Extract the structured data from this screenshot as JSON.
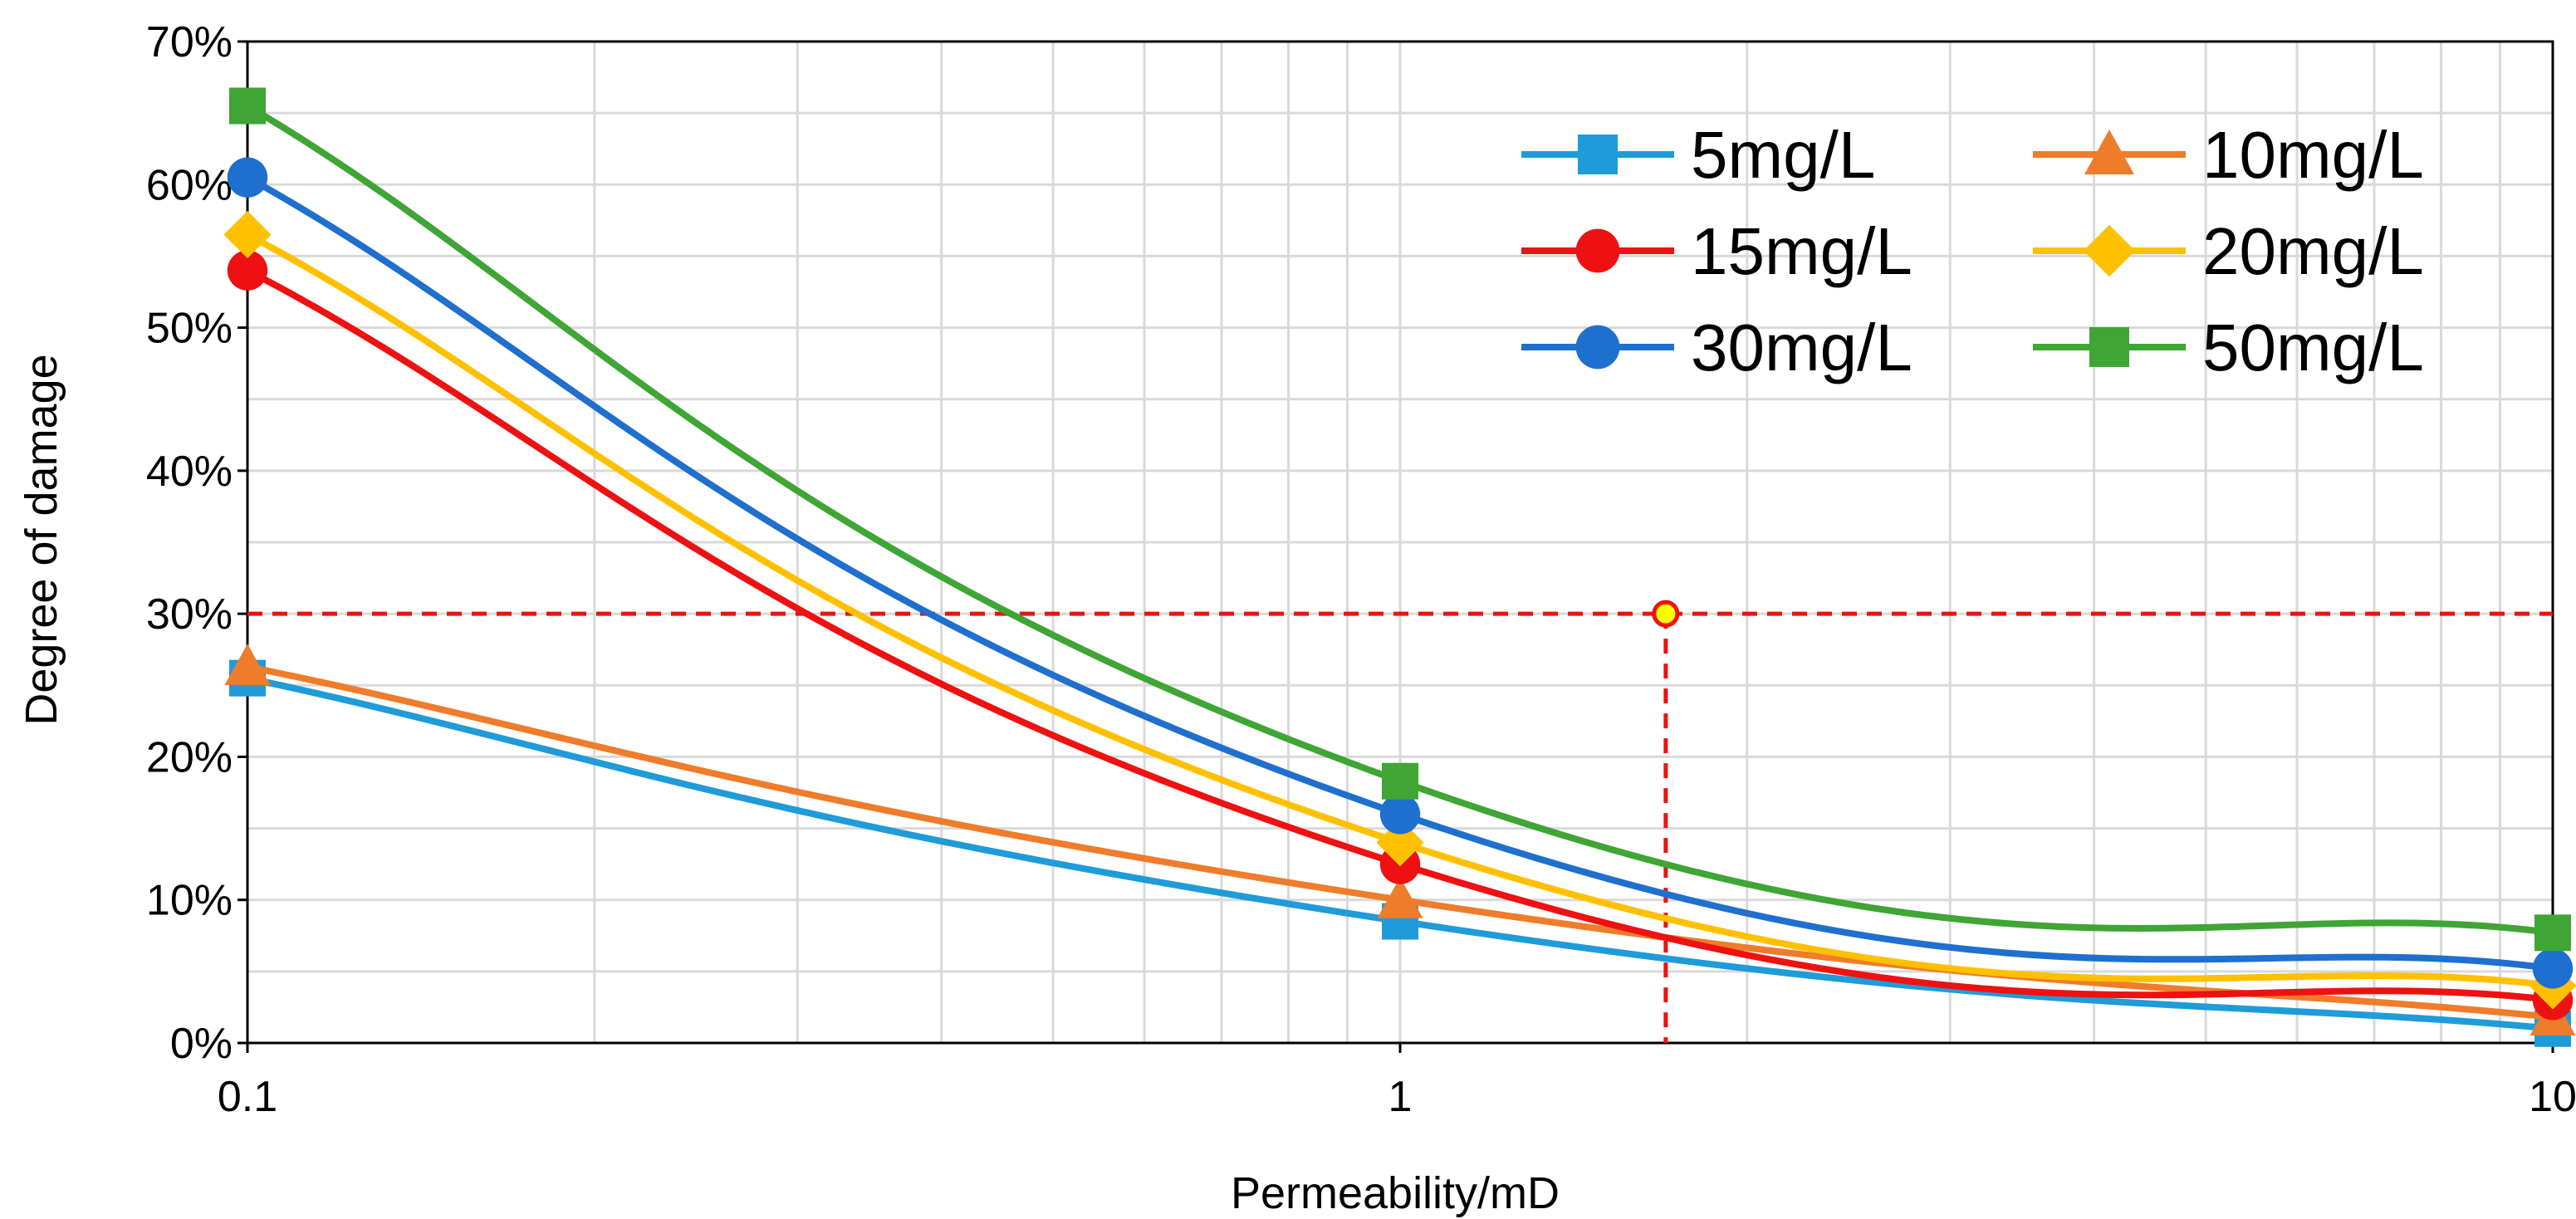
{
  "chart_data": {
    "type": "line",
    "title": "",
    "xlabel": "Permeability/mD",
    "ylabel": "Degree of damage",
    "xscale": "log",
    "xlim": [
      0.1,
      10
    ],
    "ylim": [
      0,
      0.7
    ],
    "x_ticks": [
      "0.1",
      "1",
      "10"
    ],
    "y_ticks": [
      "0%",
      "10%",
      "20%",
      "30%",
      "40%",
      "50%",
      "60%",
      "70%"
    ],
    "grid": true,
    "legend_position": "top-right",
    "x": [
      0.1,
      1,
      10
    ],
    "series": [
      {
        "name": "5mg/L",
        "values": [
          0.255,
          0.085,
          0.01
        ],
        "color": "#1f9bd9",
        "marker": "square"
      },
      {
        "name": "10mg/L",
        "values": [
          0.263,
          0.1,
          0.018
        ],
        "color": "#ef7c2b",
        "marker": "triangle"
      },
      {
        "name": "15mg/L",
        "values": [
          0.54,
          0.125,
          0.03
        ],
        "color": "#ee1111",
        "marker": "circle"
      },
      {
        "name": "20mg/L",
        "values": [
          0.565,
          0.14,
          0.04
        ],
        "color": "#ffc000",
        "marker": "diamond"
      },
      {
        "name": "30mg/L",
        "values": [
          0.605,
          0.16,
          0.052
        ],
        "color": "#1f6fce",
        "marker": "circle"
      },
      {
        "name": "50mg/L",
        "values": [
          0.655,
          0.183,
          0.077
        ],
        "color": "#3fa535",
        "marker": "square"
      }
    ],
    "reference": {
      "y": 0.3,
      "x": 1.7,
      "color": "#ee1111",
      "point_fill": "#ffff00"
    }
  }
}
